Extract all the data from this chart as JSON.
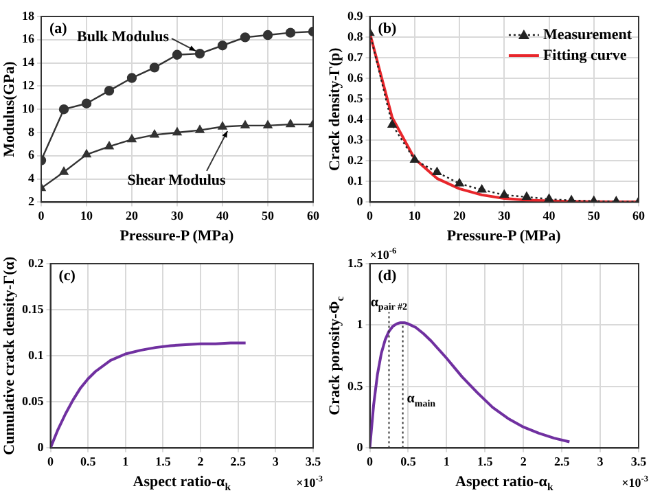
{
  "chart_data": [
    {
      "type": "line",
      "title": "(a)",
      "xlabel": "Pressure-P (MPa)",
      "ylabel": "Modulus(GPa)",
      "x": [
        0,
        5,
        10,
        15,
        20,
        25,
        30,
        35,
        40,
        45,
        50,
        55,
        60
      ],
      "series": [
        {
          "color": "#333333",
          "marker": "circle",
          "values": [
            5.6,
            10.0,
            10.5,
            11.6,
            12.7,
            13.6,
            14.7,
            14.8,
            15.5,
            16.2,
            16.4,
            16.6,
            16.7
          ]
        },
        {
          "color": "#333333",
          "marker": "triangle",
          "values": [
            3.2,
            4.6,
            6.1,
            6.8,
            7.4,
            7.8,
            8.0,
            8.2,
            8.5,
            8.6,
            8.6,
            8.7,
            8.7
          ]
        }
      ],
      "annotations": [
        {
          "text": "Bulk Modulus",
          "x": 35,
          "y": 14.8
        },
        {
          "text": "Shear Modulus",
          "x": 42,
          "y": 8.6
        }
      ],
      "xlim": [
        0,
        60
      ],
      "xticks": [
        0,
        10,
        20,
        30,
        40,
        50,
        60
      ],
      "ylim": [
        2,
        18
      ],
      "yticks": [
        2,
        4,
        6,
        8,
        10,
        12,
        14,
        16,
        18
      ],
      "grid": true
    },
    {
      "type": "line",
      "title": "(b)",
      "xlabel": "Pressure-P (MPa)",
      "ylabel": "Crack density-Γ(p)",
      "x": [
        0,
        5,
        10,
        15,
        20,
        25,
        30,
        35,
        40,
        45,
        50,
        55,
        60
      ],
      "series": [
        {
          "name": "Measurement",
          "color": "#222222",
          "marker": "triangle",
          "line_style": "dotted",
          "values": [
            0.82,
            0.375,
            0.205,
            0.145,
            0.09,
            0.06,
            0.035,
            0.025,
            0.015,
            0.008,
            0.005,
            0.003,
            0.002
          ]
        },
        {
          "name": "Fitting curve",
          "color": "#e8262b",
          "marker": "none",
          "values": [
            0.82,
            0.41,
            0.21,
            0.115,
            0.065,
            0.035,
            0.018,
            0.01,
            0.006,
            0.003,
            0.002,
            0.001,
            0.001
          ]
        }
      ],
      "legend": "top right",
      "xlim": [
        0,
        60
      ],
      "xticks": [
        0,
        10,
        20,
        30,
        40,
        50,
        60
      ],
      "ylim": [
        0,
        0.9
      ],
      "yticks": [
        0,
        0.1,
        0.2,
        0.3,
        0.4,
        0.5,
        0.6,
        0.7,
        0.8,
        0.9
      ],
      "grid": true
    },
    {
      "type": "line",
      "title": "(c)",
      "xlabel": "Aspect ratio-α$_{k}$",
      "ylabel": "Cumulative crack density-Γ(α)",
      "x": [
        0,
        0.1,
        0.2,
        0.3,
        0.4,
        0.5,
        0.6,
        0.8,
        1.0,
        1.2,
        1.4,
        1.6,
        1.8,
        2.0,
        2.2,
        2.4,
        2.6
      ],
      "series": [
        {
          "color": "#7030a0",
          "marker": "none",
          "values": [
            0,
            0.02,
            0.037,
            0.052,
            0.065,
            0.075,
            0.083,
            0.095,
            0.102,
            0.106,
            0.109,
            0.111,
            0.112,
            0.113,
            0.113,
            0.114,
            0.114
          ]
        }
      ],
      "annotations": [
        "×10$^{-3}$"
      ],
      "xlim": [
        0,
        3.5
      ],
      "xticks": [
        0,
        0.5,
        1,
        1.5,
        2,
        2.5,
        3,
        3.5
      ],
      "ylim": [
        0,
        0.2
      ],
      "yticks": [
        0,
        0.05,
        0.1,
        0.15,
        0.2
      ],
      "grid": true
    },
    {
      "type": "line",
      "title": "(d)",
      "xlabel": "Aspect ratio-α$_{k}$",
      "ylabel": "Crack porosity-Φ$_{c}$",
      "x": [
        0,
        0.05,
        0.1,
        0.15,
        0.2,
        0.25,
        0.3,
        0.35,
        0.4,
        0.45,
        0.5,
        0.6,
        0.7,
        0.8,
        0.9,
        1.0,
        1.2,
        1.4,
        1.6,
        1.8,
        2.0,
        2.2,
        2.4,
        2.6
      ],
      "series": [
        {
          "color": "#7030a0",
          "marker": "none",
          "values": [
            0,
            0.35,
            0.6,
            0.77,
            0.88,
            0.95,
            0.99,
            1.01,
            1.02,
            1.02,
            1.01,
            0.98,
            0.93,
            0.87,
            0.8,
            0.73,
            0.58,
            0.45,
            0.33,
            0.24,
            0.17,
            0.12,
            0.08,
            0.05
          ]
        }
      ],
      "ref_lines": [
        {
          "axis": "x",
          "value": 0.25,
          "label": "α$_{pair #2}$",
          "line_style": "dotted",
          "color": "#333333"
        },
        {
          "axis": "x",
          "value": 0.43,
          "label": "α$_{main}$",
          "line_style": "dotted",
          "color": "#333333"
        }
      ],
      "annotations": [
        "×10$^{-3}$",
        "×10$^{-6}$"
      ],
      "xlim": [
        0,
        3.5
      ],
      "xticks": [
        0,
        0.5,
        1,
        1.5,
        2,
        2.5,
        3,
        3.5
      ],
      "ylim": [
        0,
        1.5
      ],
      "yticks": [
        0,
        0.5,
        1,
        1.5
      ],
      "grid": true
    }
  ]
}
